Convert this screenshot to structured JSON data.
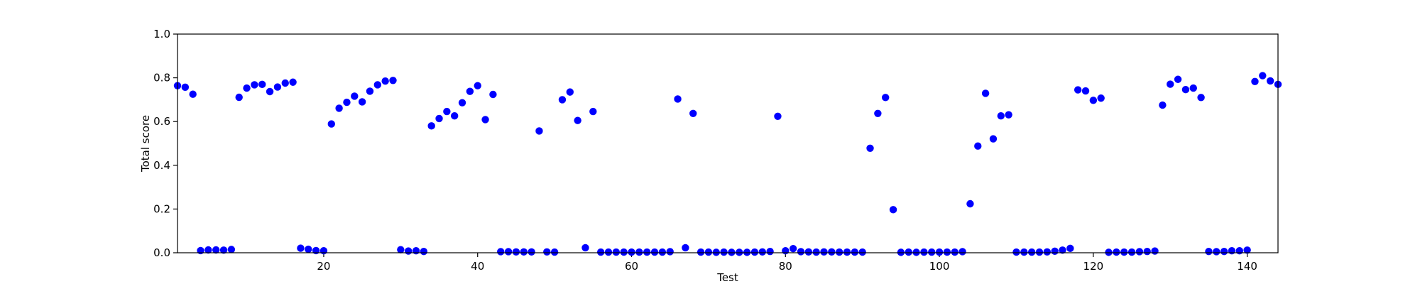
{
  "chart_data": {
    "type": "scatter",
    "title": "",
    "xlabel": "Test",
    "ylabel": "Total score",
    "xlim": [
      1,
      144
    ],
    "ylim": [
      0.0,
      1.0
    ],
    "xticks": [
      20,
      40,
      60,
      80,
      100,
      120,
      140
    ],
    "xtick_labels": [
      "20",
      "40",
      "60",
      "80",
      "100",
      "120",
      "140"
    ],
    "yticks": [
      0.0,
      0.2,
      0.4,
      0.6,
      0.8,
      1.0
    ],
    "ytick_labels": [
      "0.0",
      "0.2",
      "0.4",
      "0.6",
      "0.8",
      "1.0"
    ],
    "grid": false,
    "marker_color": "#0000ff",
    "x": [
      1,
      2,
      3,
      4,
      5,
      6,
      7,
      8,
      9,
      10,
      11,
      12,
      13,
      14,
      15,
      16,
      17,
      18,
      19,
      20,
      21,
      22,
      23,
      24,
      25,
      26,
      27,
      28,
      29,
      30,
      31,
      32,
      33,
      34,
      35,
      36,
      37,
      38,
      39,
      40,
      41,
      42,
      43,
      44,
      45,
      46,
      47,
      48,
      49,
      50,
      51,
      52,
      53,
      54,
      55,
      56,
      57,
      58,
      59,
      60,
      61,
      62,
      63,
      64,
      65,
      66,
      67,
      68,
      69,
      70,
      71,
      72,
      73,
      74,
      75,
      76,
      77,
      78,
      79,
      80,
      81,
      82,
      83,
      84,
      85,
      86,
      87,
      88,
      89,
      90,
      91,
      92,
      93,
      94,
      95,
      96,
      97,
      98,
      99,
      100,
      101,
      102,
      103,
      104,
      105,
      106,
      107,
      108,
      109,
      110,
      111,
      112,
      113,
      114,
      115,
      116,
      117,
      118,
      119,
      120,
      121,
      122,
      123,
      124,
      125,
      126,
      127,
      128,
      129,
      130,
      131,
      132,
      133,
      134,
      135,
      136,
      137,
      138,
      139,
      140,
      141,
      142,
      143,
      144
    ],
    "y": [
      0.764,
      0.757,
      0.725,
      0.01,
      0.013,
      0.013,
      0.012,
      0.015,
      0.711,
      0.753,
      0.768,
      0.77,
      0.737,
      0.758,
      0.776,
      0.78,
      0.021,
      0.016,
      0.01,
      0.009,
      0.589,
      0.661,
      0.688,
      0.716,
      0.69,
      0.739,
      0.768,
      0.785,
      0.788,
      0.014,
      0.008,
      0.009,
      0.006,
      0.58,
      0.614,
      0.646,
      0.626,
      0.686,
      0.738,
      0.764,
      0.609,
      0.724,
      0.005,
      0.005,
      0.004,
      0.004,
      0.004,
      0.557,
      0.004,
      0.003,
      0.7,
      0.735,
      0.605,
      0.023,
      0.646,
      0.003,
      0.003,
      0.003,
      0.003,
      0.003,
      0.003,
      0.003,
      0.003,
      0.003,
      0.005,
      0.703,
      0.023,
      0.637,
      0.003,
      0.003,
      0.002,
      0.003,
      0.002,
      0.002,
      0.002,
      0.003,
      0.004,
      0.006,
      0.624,
      0.009,
      0.019,
      0.005,
      0.004,
      0.003,
      0.004,
      0.004,
      0.003,
      0.003,
      0.003,
      0.003,
      0.478,
      0.637,
      0.71,
      0.197,
      0.002,
      0.003,
      0.002,
      0.003,
      0.003,
      0.003,
      0.003,
      0.003,
      0.005,
      0.224,
      0.488,
      0.729,
      0.521,
      0.626,
      0.631,
      0.003,
      0.003,
      0.003,
      0.003,
      0.004,
      0.007,
      0.012,
      0.02,
      0.745,
      0.74,
      0.697,
      0.707,
      0.002,
      0.003,
      0.003,
      0.003,
      0.005,
      0.006,
      0.008,
      0.675,
      0.771,
      0.793,
      0.746,
      0.753,
      0.71,
      0.006,
      0.005,
      0.006,
      0.009,
      0.009,
      0.012,
      0.783,
      0.81,
      0.786,
      0.77
    ]
  }
}
